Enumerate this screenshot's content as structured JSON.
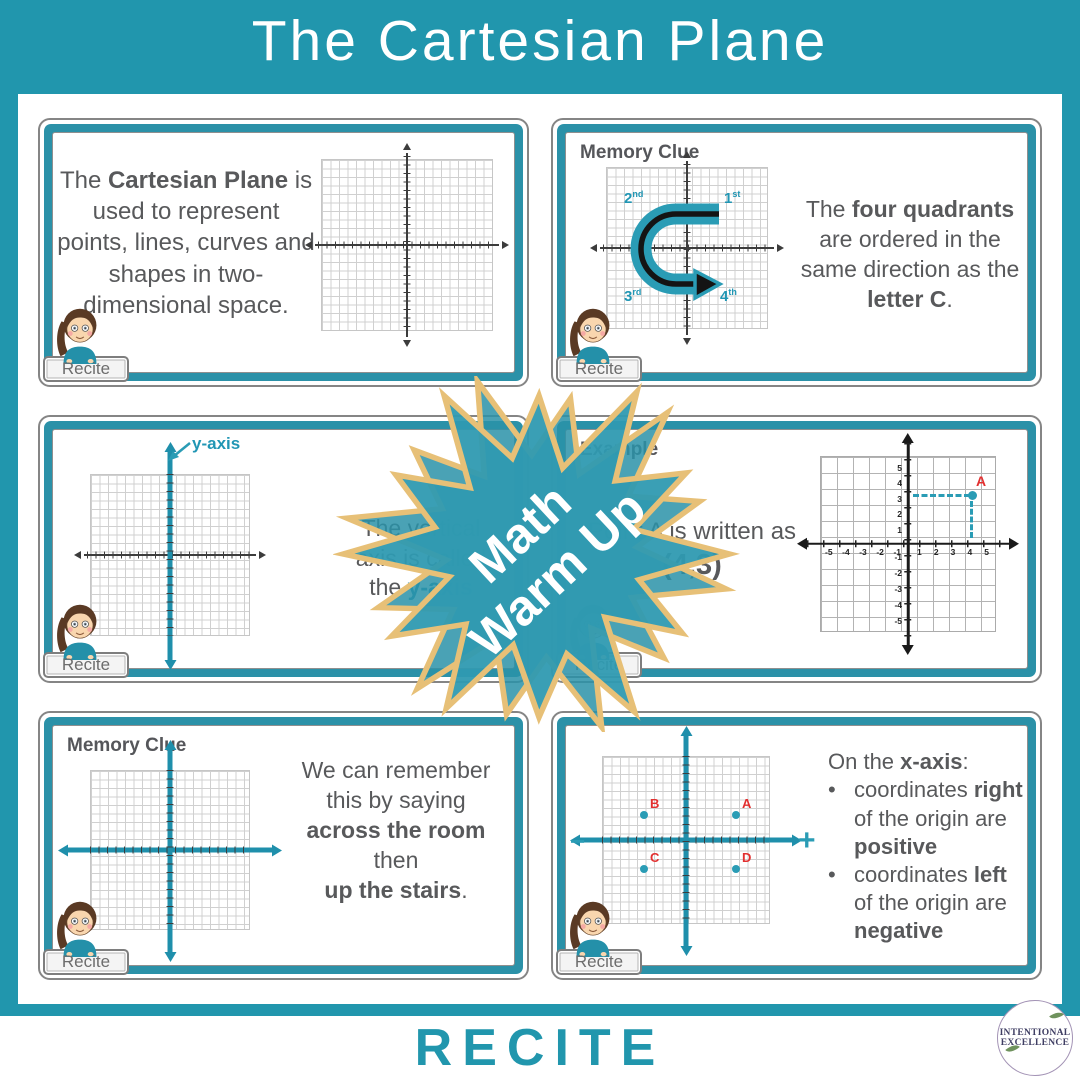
{
  "header": {
    "title": "The Cartesian Plane"
  },
  "footer": {
    "label": "RECITE"
  },
  "badge": {
    "line1": "Math",
    "line2": "Warm Up"
  },
  "recite_tab_label": "Recite",
  "logo": {
    "line1": "INTENTIONAL",
    "line2": "EXCELLENCE"
  },
  "colors": {
    "teal_background": "#2196ad",
    "teal_accent": "#2a9cb5",
    "gold_outline": "#e7c077",
    "text_gray": "#58595b",
    "point_label_red": "#e23030"
  },
  "slides": {
    "s1": {
      "body": [
        {
          "t": "The ",
          "b": 0
        },
        {
          "t": "Cartesian Plane",
          "b": 1
        },
        {
          "t": " is used to represent points, lines, curves and shapes in two-dimensional space.",
          "b": 0
        }
      ]
    },
    "s2": {
      "header": "Memory Clue",
      "quadrants": [
        {
          "n": "2",
          "s": "nd"
        },
        {
          "n": "1",
          "s": "st"
        },
        {
          "n": "3",
          "s": "rd"
        },
        {
          "n": "4",
          "s": "th"
        }
      ],
      "body": [
        {
          "t": "The ",
          "b": 0
        },
        {
          "t": "four quadrants",
          "b": 1
        },
        {
          "t": " are ordered in the same direction as the ",
          "b": 0
        },
        {
          "t": "letter C",
          "b": 1
        },
        {
          "t": ".",
          "b": 0
        }
      ]
    },
    "s3": {
      "axis_label": "y-axis",
      "body": [
        {
          "t": "The vertical",
          "b": 0
        },
        {
          "t": "axis is called",
          "b": 0,
          "br": 1
        },
        {
          "t": "the ",
          "b": 0,
          "br": 1
        },
        {
          "t": "y-axis",
          "b": 1,
          "c": "tealtxt"
        }
      ]
    },
    "s4": {
      "header": "Example",
      "body": [
        {
          "t": "Point A is written as",
          "b": 0
        },
        {
          "t": "(4,3)",
          "b": 1,
          "c": "big",
          "br": 1
        }
      ],
      "point_label": "A",
      "x_ticks_neg": [
        "-5",
        "-4",
        "-3",
        "-2",
        "-1"
      ],
      "x_ticks_pos": [
        "1",
        "2",
        "3",
        "4",
        "5"
      ],
      "y_ticks_pos": [
        "5",
        "4",
        "3",
        "2",
        "1"
      ],
      "y_ticks_neg": [
        "-1",
        "-2",
        "-3",
        "-4",
        "-5"
      ]
    },
    "s5": {
      "header": "Memory Clue",
      "body": [
        {
          "t": "We can remember",
          "b": 0
        },
        {
          "t": "this by saying",
          "b": 0,
          "br": 1
        },
        {
          "t": "across the room",
          "b": 1,
          "br": 1
        },
        {
          "t": "then",
          "b": 0,
          "br": 1
        },
        {
          "t": "up the stairs",
          "b": 1,
          "br": 1
        },
        {
          "t": ".",
          "b": 0
        }
      ]
    },
    "s6": {
      "intro": [
        {
          "t": "On the ",
          "b": 0
        },
        {
          "t": "x-axis",
          "b": 1
        },
        {
          "t": ":",
          "b": 0
        }
      ],
      "bullet_char": "•",
      "bullets": {
        "b1": [
          {
            "t": "coordinates ",
            "b": 0
          },
          {
            "t": "right",
            "b": 1
          },
          {
            "t": " of the origin are ",
            "b": 0
          },
          {
            "t": "positive",
            "b": 1
          }
        ],
        "b2": [
          {
            "t": "coordinates ",
            "b": 0
          },
          {
            "t": "left",
            "b": 1
          },
          {
            "t": " of the origin are ",
            "b": 0
          },
          {
            "t": "negative",
            "b": 1
          }
        ]
      },
      "plus": "+",
      "minus": "−",
      "points": {
        "a": "A",
        "b": "B",
        "c": "C",
        "d": "D"
      }
    }
  }
}
